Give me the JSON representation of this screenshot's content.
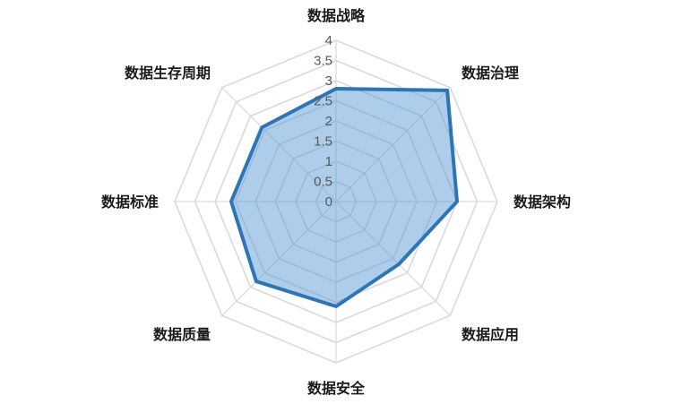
{
  "chart_data": {
    "type": "radar",
    "categories": [
      "数据战略",
      "数据治理",
      "数据架构",
      "数据应用",
      "数据安全",
      "数据质量",
      "数据标准",
      "数据生存周期"
    ],
    "series": [
      {
        "values": [
          2.8,
          3.9,
          3.0,
          2.2,
          2.6,
          2.8,
          2.6,
          2.6
        ]
      }
    ],
    "rlim": [
      0,
      4
    ],
    "ticks": [
      "0",
      "0.5",
      "1",
      "1.5",
      "2",
      "2.5",
      "3",
      "3.5",
      "4"
    ],
    "tick_values": [
      0,
      0.5,
      1,
      1.5,
      2,
      2.5,
      3,
      3.5,
      4
    ],
    "grid": true,
    "legend": "none",
    "colors": {
      "fill": "#5b9bd5",
      "line": "#2e75b6",
      "grid": "#d9d9d9"
    }
  }
}
